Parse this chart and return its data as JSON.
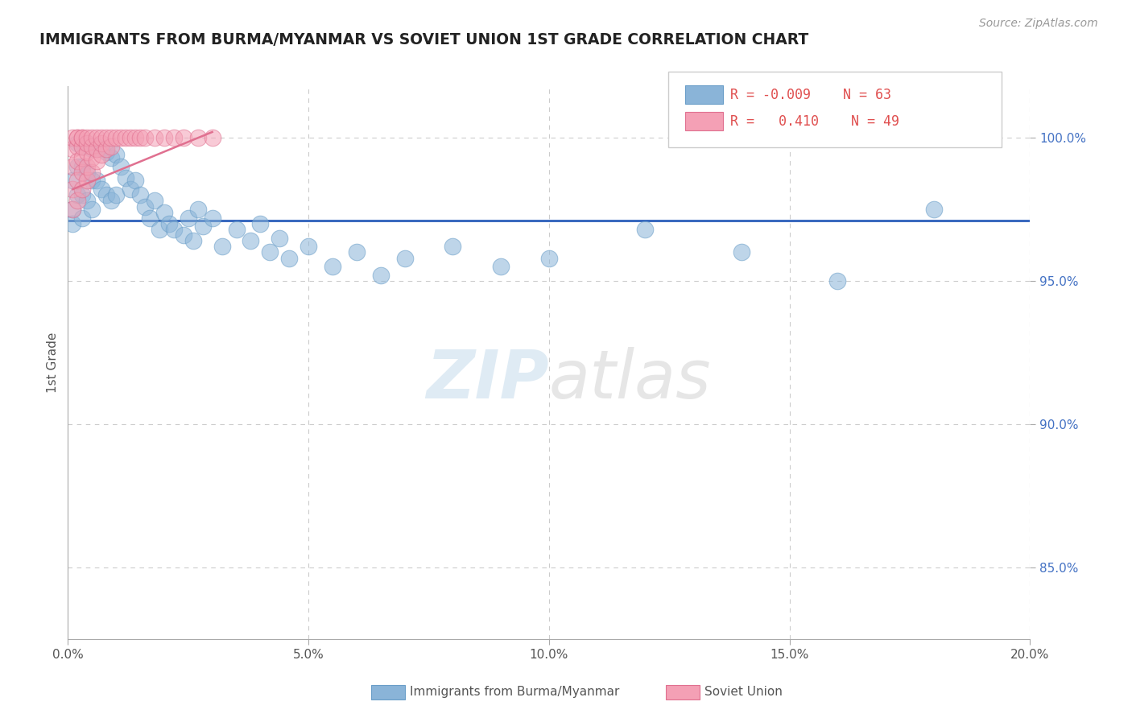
{
  "title": "IMMIGRANTS FROM BURMA/MYANMAR VS SOVIET UNION 1ST GRADE CORRELATION CHART",
  "source": "Source: ZipAtlas.com",
  "ylabel": "1st Grade",
  "xlim": [
    0.0,
    0.2
  ],
  "ylim": [
    0.825,
    1.018
  ],
  "xlabel_ticks": [
    0.0,
    0.05,
    0.1,
    0.15,
    0.2
  ],
  "xlabel_labels": [
    "0.0%",
    "5.0%",
    "10.0%",
    "15.0%",
    "20.0%"
  ],
  "ylabel_ticks": [
    0.85,
    0.9,
    0.95,
    1.0
  ],
  "ylabel_labels": [
    "85.0%",
    "90.0%",
    "95.0%",
    "100.0%"
  ],
  "hline_y": 0.971,
  "hline_color": "#3a6abf",
  "grid_color": "#cccccc",
  "watermark_zip": "ZIP",
  "watermark_atlas": "atlas",
  "legend_r_blue": "-0.009",
  "legend_n_blue": "63",
  "legend_r_pink": "0.410",
  "legend_n_pink": "49",
  "blue_color": "#8ab4d8",
  "blue_edge": "#6a9ec8",
  "pink_color": "#f4a0b5",
  "pink_edge": "#e07090",
  "pink_line_color": "#e07090",
  "blue_scatter_x": [
    0.001,
    0.001,
    0.001,
    0.002,
    0.002,
    0.002,
    0.003,
    0.003,
    0.003,
    0.003,
    0.004,
    0.004,
    0.004,
    0.005,
    0.005,
    0.005,
    0.006,
    0.006,
    0.007,
    0.007,
    0.008,
    0.008,
    0.009,
    0.009,
    0.01,
    0.01,
    0.011,
    0.012,
    0.013,
    0.014,
    0.015,
    0.016,
    0.017,
    0.018,
    0.019,
    0.02,
    0.021,
    0.022,
    0.024,
    0.025,
    0.026,
    0.027,
    0.028,
    0.03,
    0.032,
    0.035,
    0.038,
    0.04,
    0.042,
    0.044,
    0.046,
    0.05,
    0.055,
    0.06,
    0.065,
    0.07,
    0.08,
    0.09,
    0.1,
    0.12,
    0.14,
    0.16,
    0.18
  ],
  "blue_scatter_y": [
    0.985,
    0.975,
    0.97,
    0.998,
    0.99,
    0.98,
    0.997,
    0.99,
    0.98,
    0.972,
    0.998,
    0.988,
    0.978,
    0.996,
    0.985,
    0.975,
    0.997,
    0.985,
    0.996,
    0.982,
    0.995,
    0.98,
    0.993,
    0.978,
    0.994,
    0.98,
    0.99,
    0.986,
    0.982,
    0.985,
    0.98,
    0.976,
    0.972,
    0.978,
    0.968,
    0.974,
    0.97,
    0.968,
    0.966,
    0.972,
    0.964,
    0.975,
    0.969,
    0.972,
    0.962,
    0.968,
    0.964,
    0.97,
    0.96,
    0.965,
    0.958,
    0.962,
    0.955,
    0.96,
    0.952,
    0.958,
    0.962,
    0.955,
    0.958,
    0.968,
    0.96,
    0.95,
    0.975
  ],
  "pink_scatter_x": [
    0.001,
    0.001,
    0.001,
    0.001,
    0.001,
    0.002,
    0.002,
    0.002,
    0.002,
    0.002,
    0.002,
    0.003,
    0.003,
    0.003,
    0.003,
    0.003,
    0.003,
    0.004,
    0.004,
    0.004,
    0.004,
    0.004,
    0.005,
    0.005,
    0.005,
    0.005,
    0.006,
    0.006,
    0.006,
    0.007,
    0.007,
    0.007,
    0.008,
    0.008,
    0.009,
    0.009,
    0.01,
    0.011,
    0.012,
    0.013,
    0.014,
    0.015,
    0.016,
    0.018,
    0.02,
    0.022,
    0.024,
    0.027,
    0.03
  ],
  "pink_scatter_y": [
    0.975,
    0.982,
    0.99,
    0.996,
    1.0,
    0.978,
    0.985,
    0.992,
    0.997,
    1.0,
    1.0,
    0.982,
    0.988,
    0.993,
    0.997,
    1.0,
    1.0,
    0.985,
    0.99,
    0.995,
    0.998,
    1.0,
    0.988,
    0.993,
    0.997,
    1.0,
    0.992,
    0.996,
    1.0,
    0.994,
    0.998,
    1.0,
    0.996,
    1.0,
    0.997,
    1.0,
    1.0,
    1.0,
    1.0,
    1.0,
    1.0,
    1.0,
    1.0,
    1.0,
    1.0,
    1.0,
    1.0,
    1.0,
    1.0
  ],
  "pink_trend_x": [
    0.001,
    0.03
  ],
  "pink_trend_y": [
    0.982,
    1.002
  ]
}
